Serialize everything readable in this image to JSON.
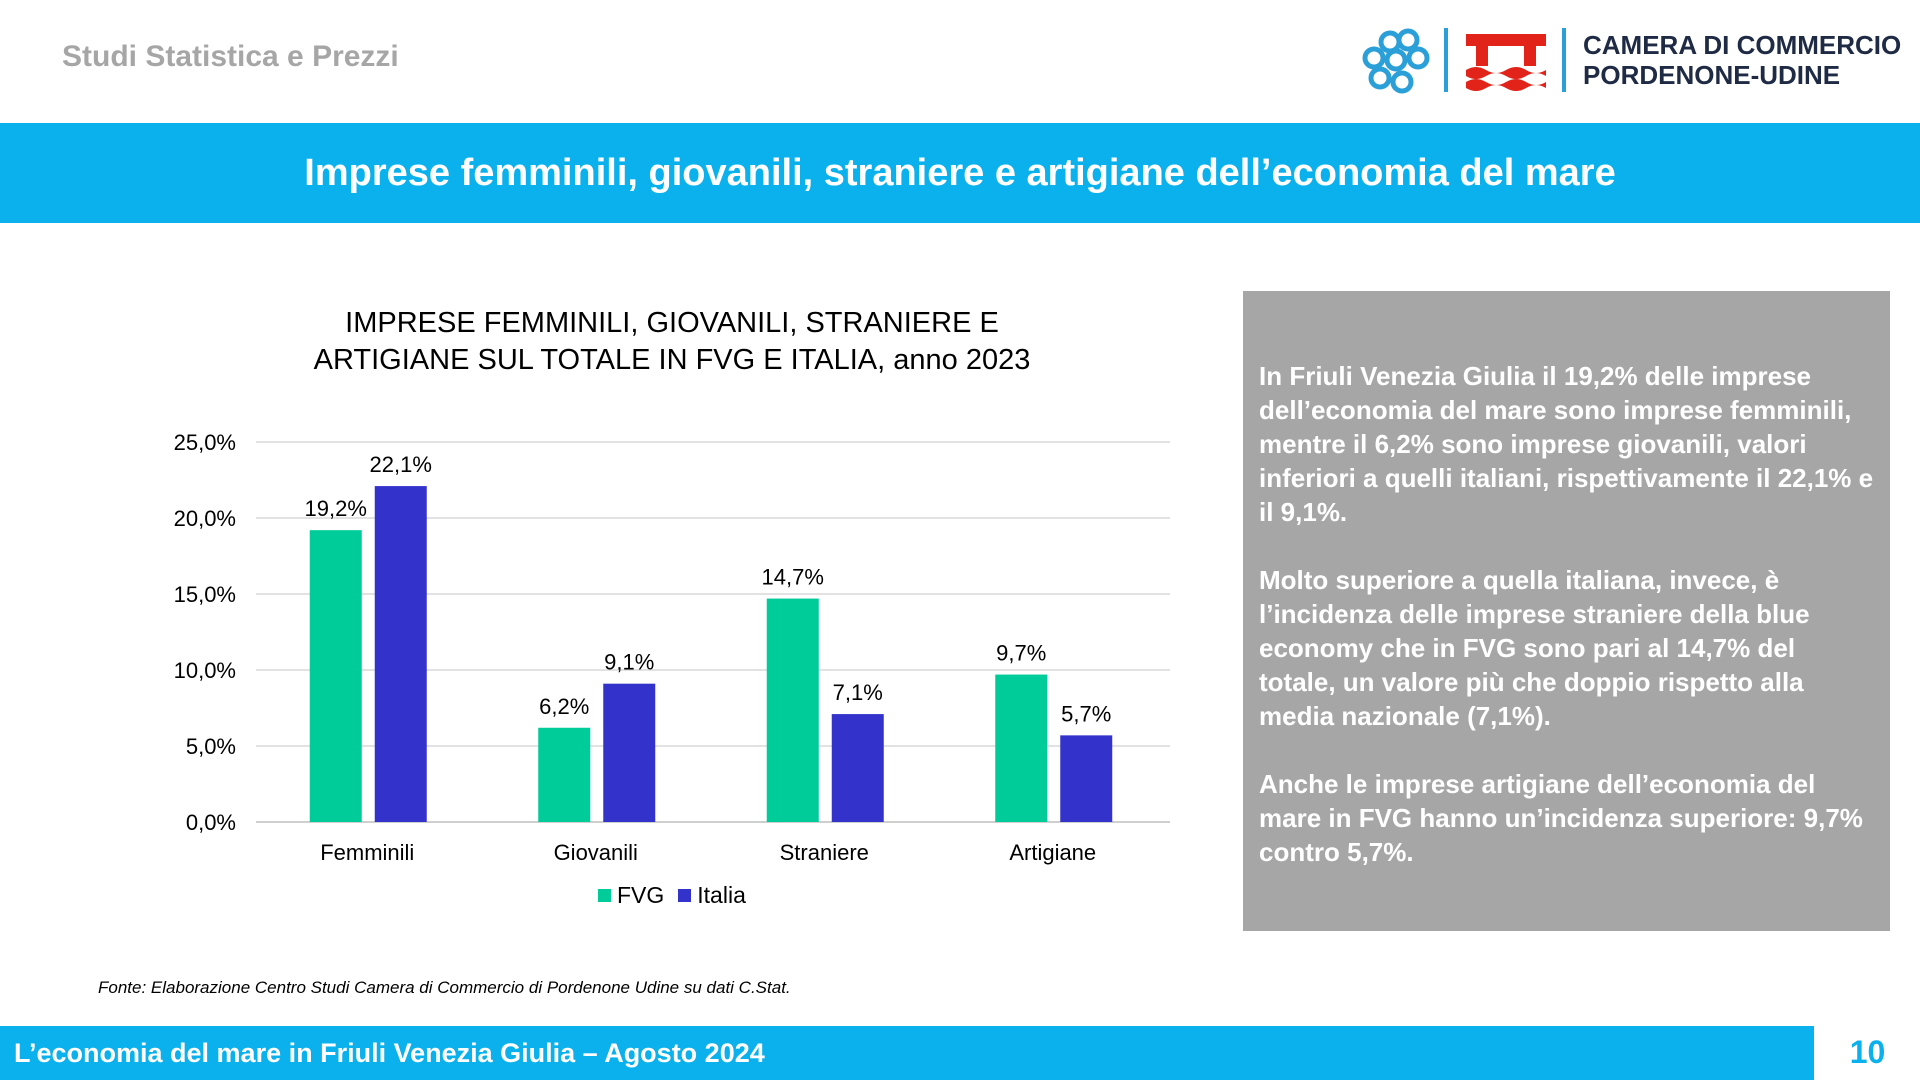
{
  "header": {
    "department": "Studi Statistica e Prezzi",
    "logo_line1": "CAMERA DI COMMERCIO",
    "logo_line2": "PORDENONE-UDINE"
  },
  "slide_title": "Imprese femminili, giovanili, straniere e artigiane dell’economia del mare",
  "chart_data": {
    "type": "bar",
    "title_line1": "IMPRESE FEMMINILI, GIOVANILI, STRANIERE E",
    "title_line2": "ARTIGIANE SUL TOTALE IN FVG E ITALIA, anno 2023",
    "categories": [
      "Femminili",
      "Giovanili",
      "Straniere",
      "Artigiane"
    ],
    "series": [
      {
        "name": "FVG",
        "color": "#00cc99",
        "values": [
          19.2,
          6.2,
          14.7,
          9.7
        ],
        "labels": [
          "19,2%",
          "6,2%",
          "14,7%",
          "9,7%"
        ]
      },
      {
        "name": "Italia",
        "color": "#3333cc",
        "values": [
          22.1,
          9.1,
          7.1,
          5.7
        ],
        "labels": [
          "22,1%",
          "9,1%",
          "7,1%",
          "5,7%"
        ]
      }
    ],
    "ylim": [
      0,
      25
    ],
    "yticks": [
      0,
      5,
      10,
      15,
      20,
      25
    ],
    "ytick_labels": [
      "0,0%",
      "5,0%",
      "10,0%",
      "15,0%",
      "20,0%",
      "25,0%"
    ],
    "grid": true,
    "legend_position": "bottom"
  },
  "textbox": {
    "p1": "In Friuli Venezia Giulia il 19,2% delle imprese dell’economia del mare sono imprese femminili, mentre il 6,2% sono imprese giovanili, valori inferiori a quelli italiani, rispettivamente il 22,1% e il 9,1%.",
    "p2": "Molto superiore a quella italiana, invece, è l’incidenza delle imprese straniere della blue economy che in FVG sono pari al 14,7% del totale, un valore più che doppio rispetto alla media nazionale (7,1%).",
    "p3": "Anche le imprese artigiane dell’economia del mare in FVG hanno un’incidenza superiore: 9,7% contro 5,7%."
  },
  "source": "Fonte: Elaborazione Centro Studi Camera di Commercio di Pordenone Udine su dati C.Stat.",
  "footer": {
    "text": "L’economia del mare in Friuli Venezia Giulia – Agosto 2024",
    "page_number": "10"
  },
  "colors": {
    "accent": "#0bb1ec",
    "textbox_bg": "#a6a6a6",
    "logo_red": "#e2231a",
    "logo_blue": "#2a9fd8"
  }
}
